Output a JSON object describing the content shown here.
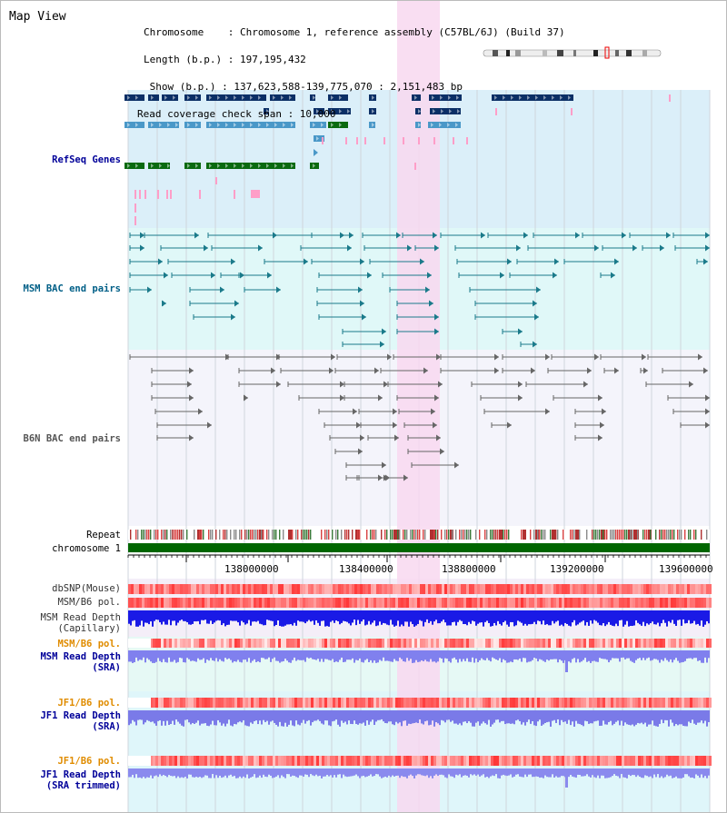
{
  "title": "Map View",
  "header": {
    "chromosome": "Chromosome    : Chromosome 1, reference assembly (C57BL/6J) (Build 37)",
    "length": "Length (b.p.) : 197,195,432",
    "show": " Show (b.p.) : 137,623,588-139,775,070 : 2,151,483 bp",
    "coverage": "Read coverage check span : 10,000"
  },
  "tracks": {
    "refseq": "RefSeq Genes",
    "msm_bac": "MSM BAC end pairs",
    "b6n_bac": "B6N BAC end pairs",
    "repeat": "Repeat",
    "chromosome": "chromosome 1",
    "dbsnp": "dbSNP(Mouse)",
    "msm_b6_pol_1": "MSM/B6 pol.",
    "msm_read_depth_cap": [
      "MSM Read Depth",
      "(Capillary)"
    ],
    "msm_b6_pol_2": "MSM/B6 pol.",
    "msm_read_depth_sra": [
      "MSM Read Depth",
      "(SRA)"
    ],
    "jf1_b6_pol_1": "JF1/B6 pol.",
    "jf1_read_depth_sra": [
      "JF1 Read Depth",
      "(SRA)"
    ],
    "jf1_b6_pol_2": "JF1/B6 pol.",
    "jf1_read_depth_trim": [
      "JF1 Read Depth",
      "(SRA trimmed)"
    ]
  },
  "ruler_ticks": [
    "138000000",
    "138400000",
    "138800000",
    "139200000",
    "139600000"
  ],
  "colors": {
    "highlight": "#f8d8f0",
    "refseq_bg": "#dbeff9",
    "msm_bac_bg": "#e0f8f8",
    "b6n_bac_bg": "#f4f4fb",
    "chromosome_bar": "#006600",
    "gene_dark": "#0b2f66",
    "gene_blue": "#4a98c8",
    "gene_green": "#0a6a10",
    "pink": "#ff9ec8",
    "msm_label": "#005f87",
    "b6n_label": "#555555",
    "refseq_label": "#000099",
    "pol_label_orange": "#e08c00",
    "depth_label_blue": "#000099"
  }
}
